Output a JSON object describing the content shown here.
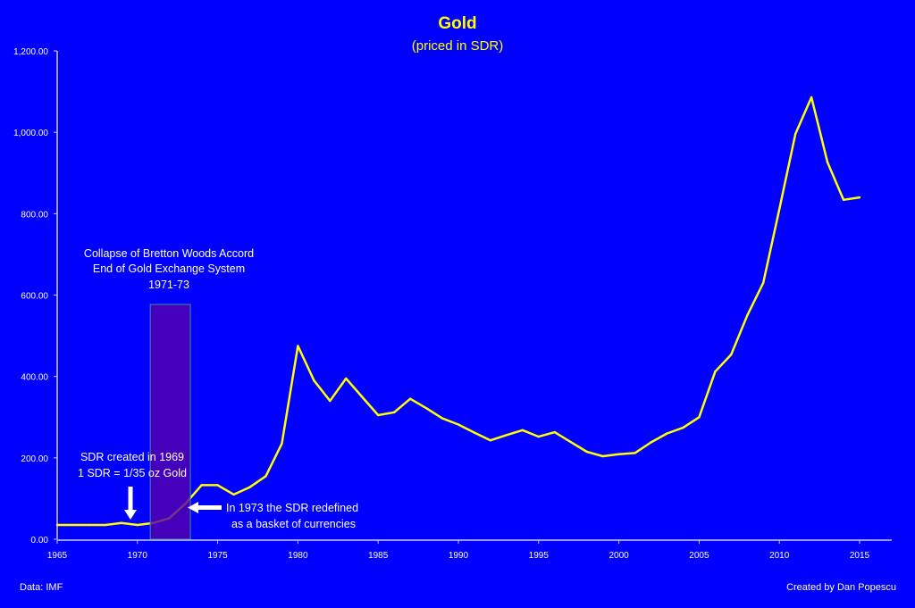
{
  "chart_data": {
    "type": "line",
    "title": "Gold",
    "subtitle": "(priced in SDR)",
    "xlabel": "",
    "ylabel": "",
    "xlim": [
      1965,
      2017
    ],
    "ylim": [
      0,
      1200
    ],
    "grid": false,
    "x_ticks": [
      "1965",
      "1970",
      "1975",
      "1980",
      "1985",
      "1990",
      "1995",
      "2000",
      "2005",
      "2010",
      "2015"
    ],
    "y_ticks": [
      "0.00",
      "200.00",
      "400.00",
      "600.00",
      "800.00",
      "1,000.00",
      "1,200.00"
    ],
    "colors": {
      "background": "#0000FF",
      "line": "#FFFF00",
      "title": "#FFFF00",
      "highlight": "#5500AA",
      "text": "#FFFFFF"
    },
    "series": [
      {
        "x": [
          1965,
          1966,
          1967,
          1968,
          1969,
          1970,
          1971,
          1972,
          1973,
          1974,
          1975,
          1976,
          1977,
          1978,
          1979,
          1980,
          1981,
          1982,
          1983,
          1984,
          1985,
          1986,
          1987,
          1988,
          1989,
          1990,
          1991,
          1992,
          1993,
          1994,
          1995,
          1996,
          1997,
          1998,
          1999,
          2000,
          2001,
          2002,
          2003,
          2004,
          2005,
          2006,
          2007,
          2008,
          2009,
          2010,
          2011,
          2012,
          2013,
          2014,
          2015
        ],
        "values": [
          35,
          35,
          35,
          35,
          40,
          35,
          40,
          52,
          88,
          133,
          133,
          110,
          128,
          155,
          235,
          475,
          390,
          340,
          395,
          350,
          305,
          312,
          345,
          322,
          297,
          282,
          262,
          243,
          256,
          268,
          252,
          263,
          239,
          215,
          204,
          209,
          212,
          238,
          260,
          274,
          300,
          412,
          454,
          550,
          630,
          811,
          996,
          1086,
          926,
          834,
          840
        ]
      }
    ],
    "highlight_region": {
      "x_start": 1970.8,
      "x_end": 1973.3,
      "y_top": 577
    },
    "annotations": {
      "bretton_woods": [
        "Collapse of Bretton Woods Accord",
        "End of Gold Exchange System",
        "1971-73"
      ],
      "sdr_created": [
        "SDR created in 1969",
        "1 SDR = 1/35 oz Gold"
      ],
      "sdr_redefined": [
        "In 1973 the SDR redefined",
        "as a basket of currencies"
      ]
    },
    "source": "Data: IMF",
    "credit": "Created by Dan Popescu"
  }
}
